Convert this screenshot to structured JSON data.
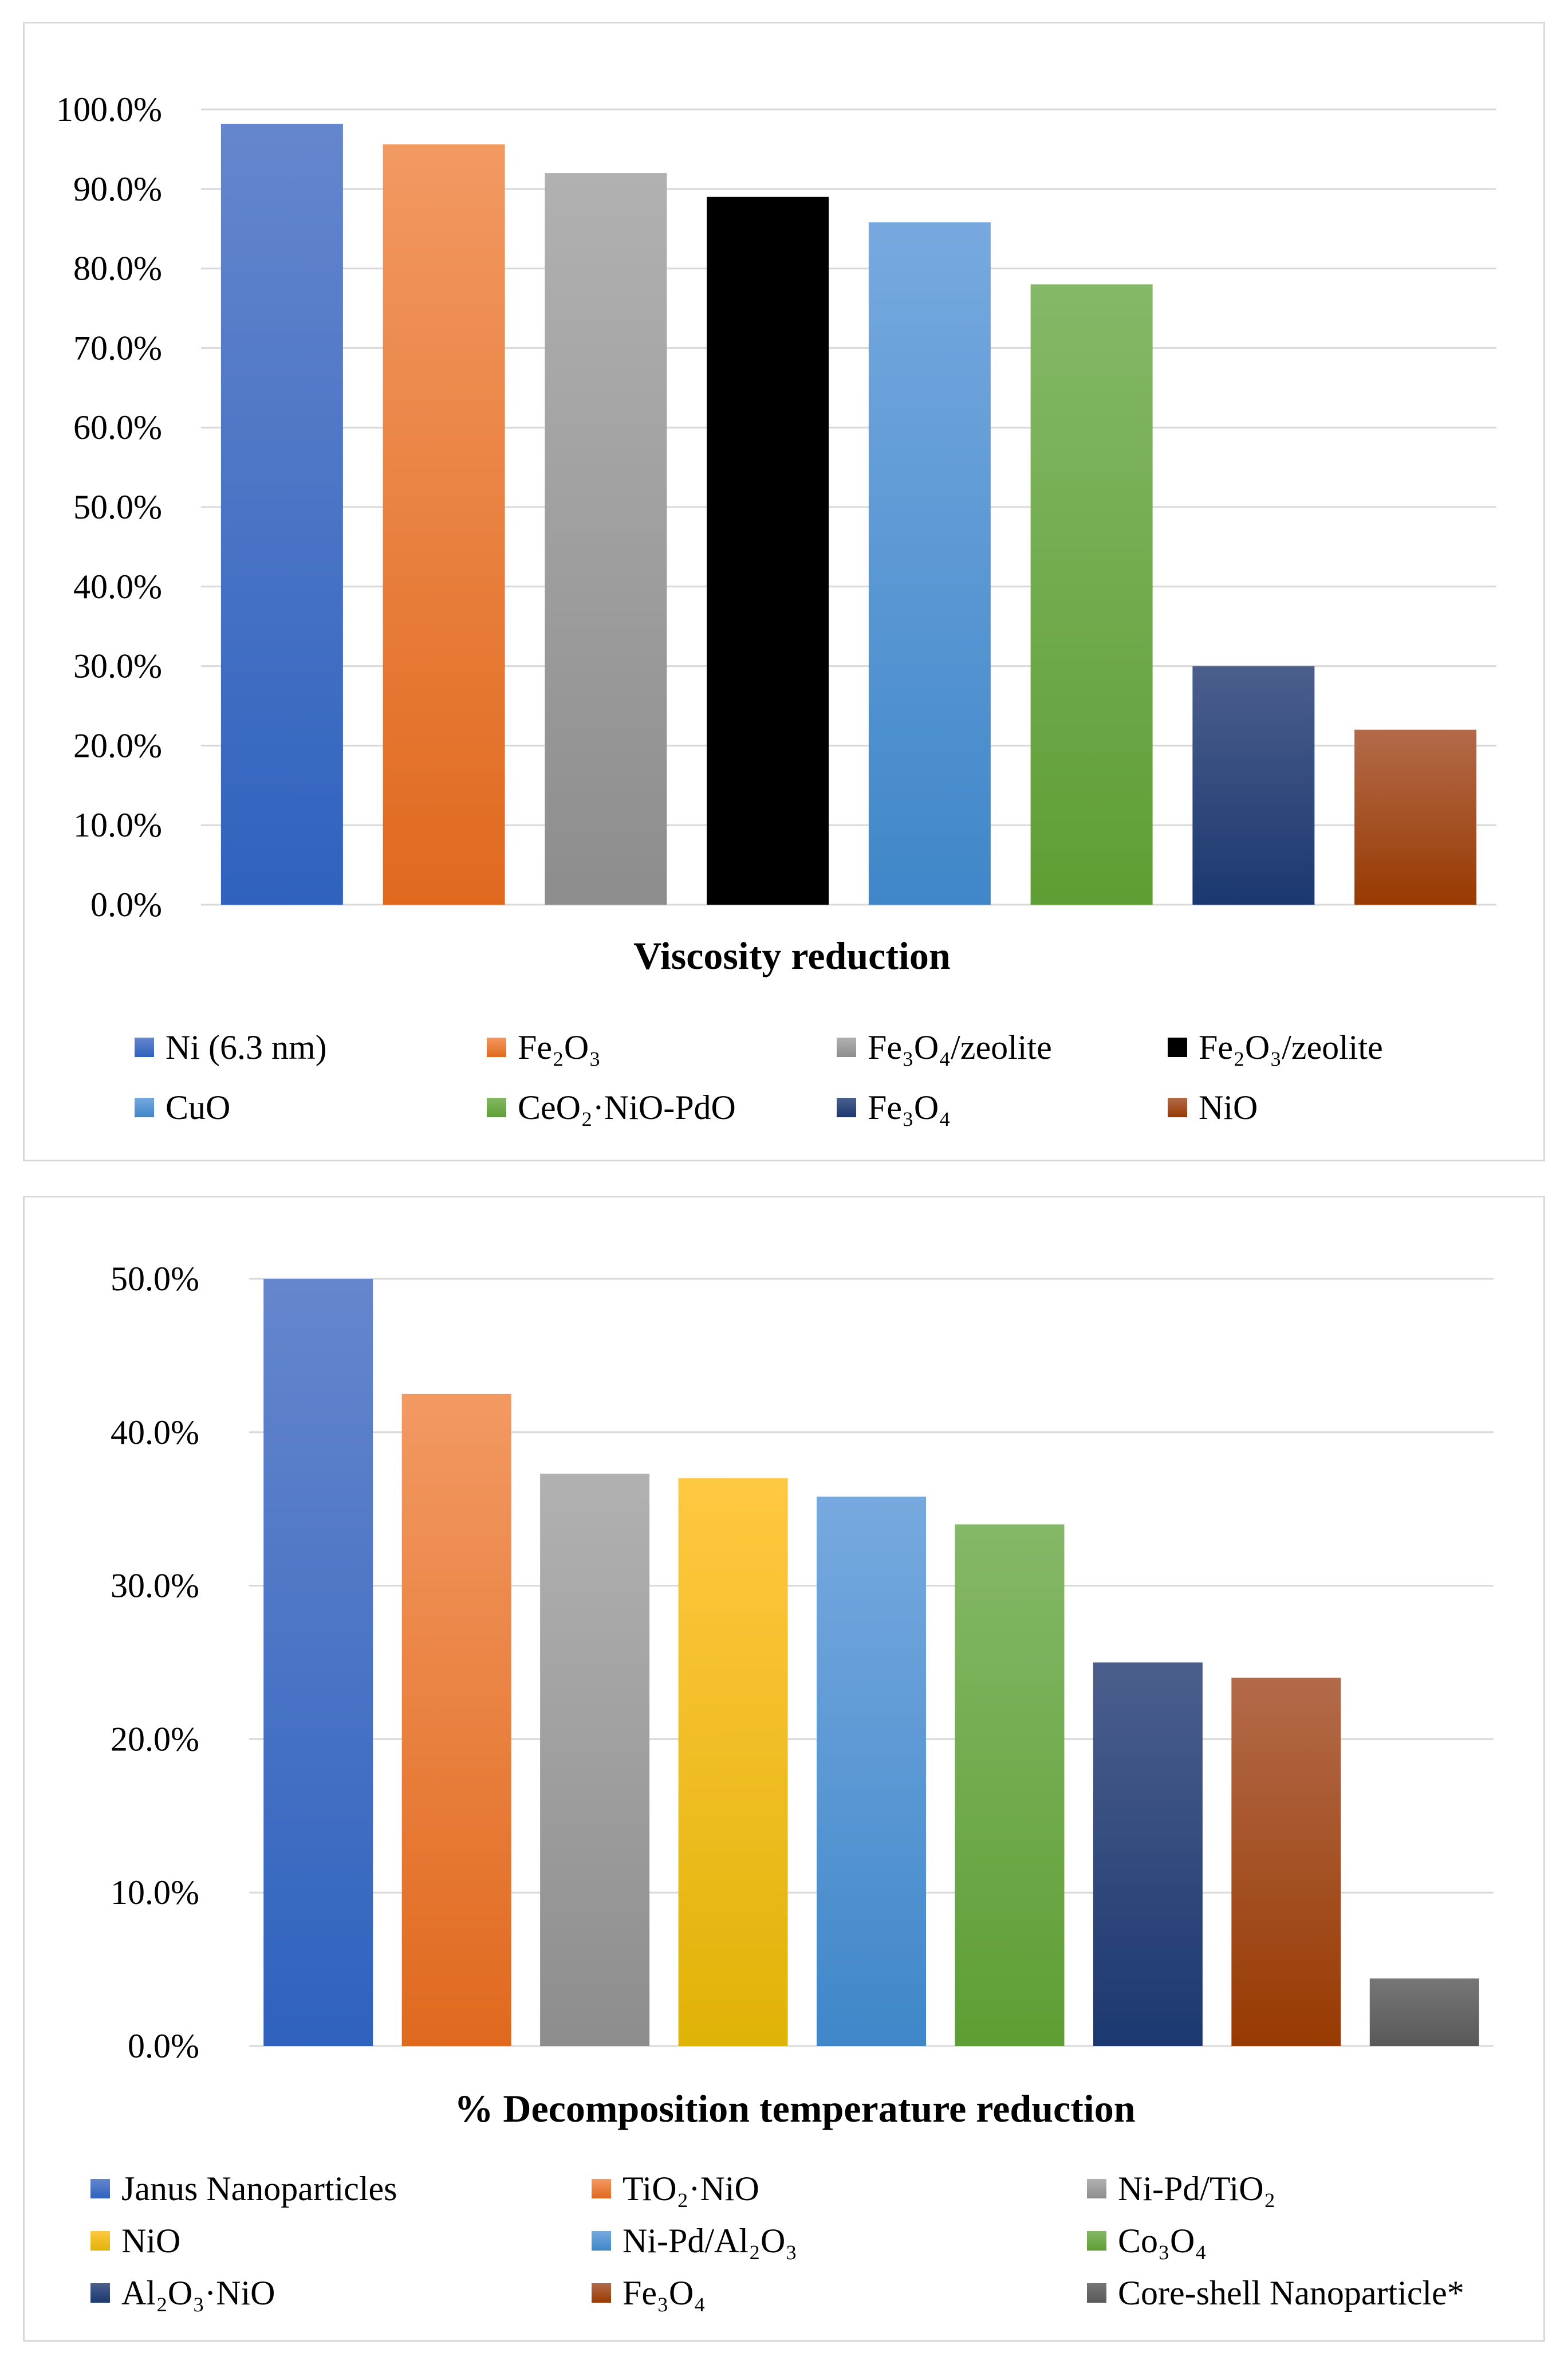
{
  "chart_data": [
    {
      "type": "bar",
      "title": "Viscosity reduction",
      "xlabel": "",
      "ylabel": "",
      "ylim": [
        0,
        100
      ],
      "yticks": [
        "0.0%",
        "10.0%",
        "20.0%",
        "30.0%",
        "40.0%",
        "50.0%",
        "60.0%",
        "70.0%",
        "80.0%",
        "90.0%",
        "100.0%"
      ],
      "grid": true,
      "legend_position": "bottom",
      "categories": [
        "Ni (6.3 nm)",
        "Fe₂O₃",
        "Fe₃O₄/zeolite",
        "Fe₂O₃/zeolite",
        "CuO",
        "CeO₂·NiO-PdO",
        "Fe₃O₄",
        "NiO"
      ],
      "values": [
        98.2,
        95.6,
        92.0,
        89.0,
        85.8,
        78.0,
        30.0,
        22.0
      ],
      "colors": [
        [
          "#6586cd",
          "#2f62be"
        ],
        [
          "#f29962",
          "#e0691e"
        ],
        [
          "#b1b1b1",
          "#8d8d8d"
        ],
        [
          "#000000",
          "#000000"
        ],
        [
          "#77a9df",
          "#3f87c9"
        ],
        [
          "#85b867",
          "#5e9e34"
        ],
        [
          "#4b5f8c",
          "#1b3870"
        ],
        [
          "#b36a4a",
          "#983a02"
        ]
      ]
    },
    {
      "type": "bar",
      "title": "% Decomposition temperature reduction",
      "xlabel": "",
      "ylabel": "",
      "ylim": [
        0,
        50
      ],
      "yticks": [
        "0.0%",
        "10.0%",
        "20.0%",
        "30.0%",
        "40.0%",
        "50.0%"
      ],
      "grid": true,
      "legend_position": "bottom",
      "categories": [
        "Janus Nanoparticles",
        "TiO₂·NiO",
        "Ni-Pd/TiO₂",
        "NiO",
        "Ni-Pd/Al₂O₃",
        "Co₃O₄",
        "Al₂O₃·NiO",
        "Fe₃O₄",
        "Core-shell Nanoparticle*"
      ],
      "values": [
        50.0,
        42.5,
        37.3,
        37.0,
        35.8,
        34.0,
        25.0,
        24.0,
        4.4
      ],
      "colors": [
        [
          "#6586cd",
          "#2f62be"
        ],
        [
          "#f29962",
          "#e0691e"
        ],
        [
          "#b1b1b1",
          "#8d8d8d"
        ],
        [
          "#ffc841",
          "#e0b307"
        ],
        [
          "#77a9df",
          "#3f87c9"
        ],
        [
          "#85b867",
          "#5e9e34"
        ],
        [
          "#4b5f8c",
          "#1b3870"
        ],
        [
          "#b36a4a",
          "#983a02"
        ],
        [
          "#767676",
          "#595959"
        ]
      ]
    }
  ]
}
